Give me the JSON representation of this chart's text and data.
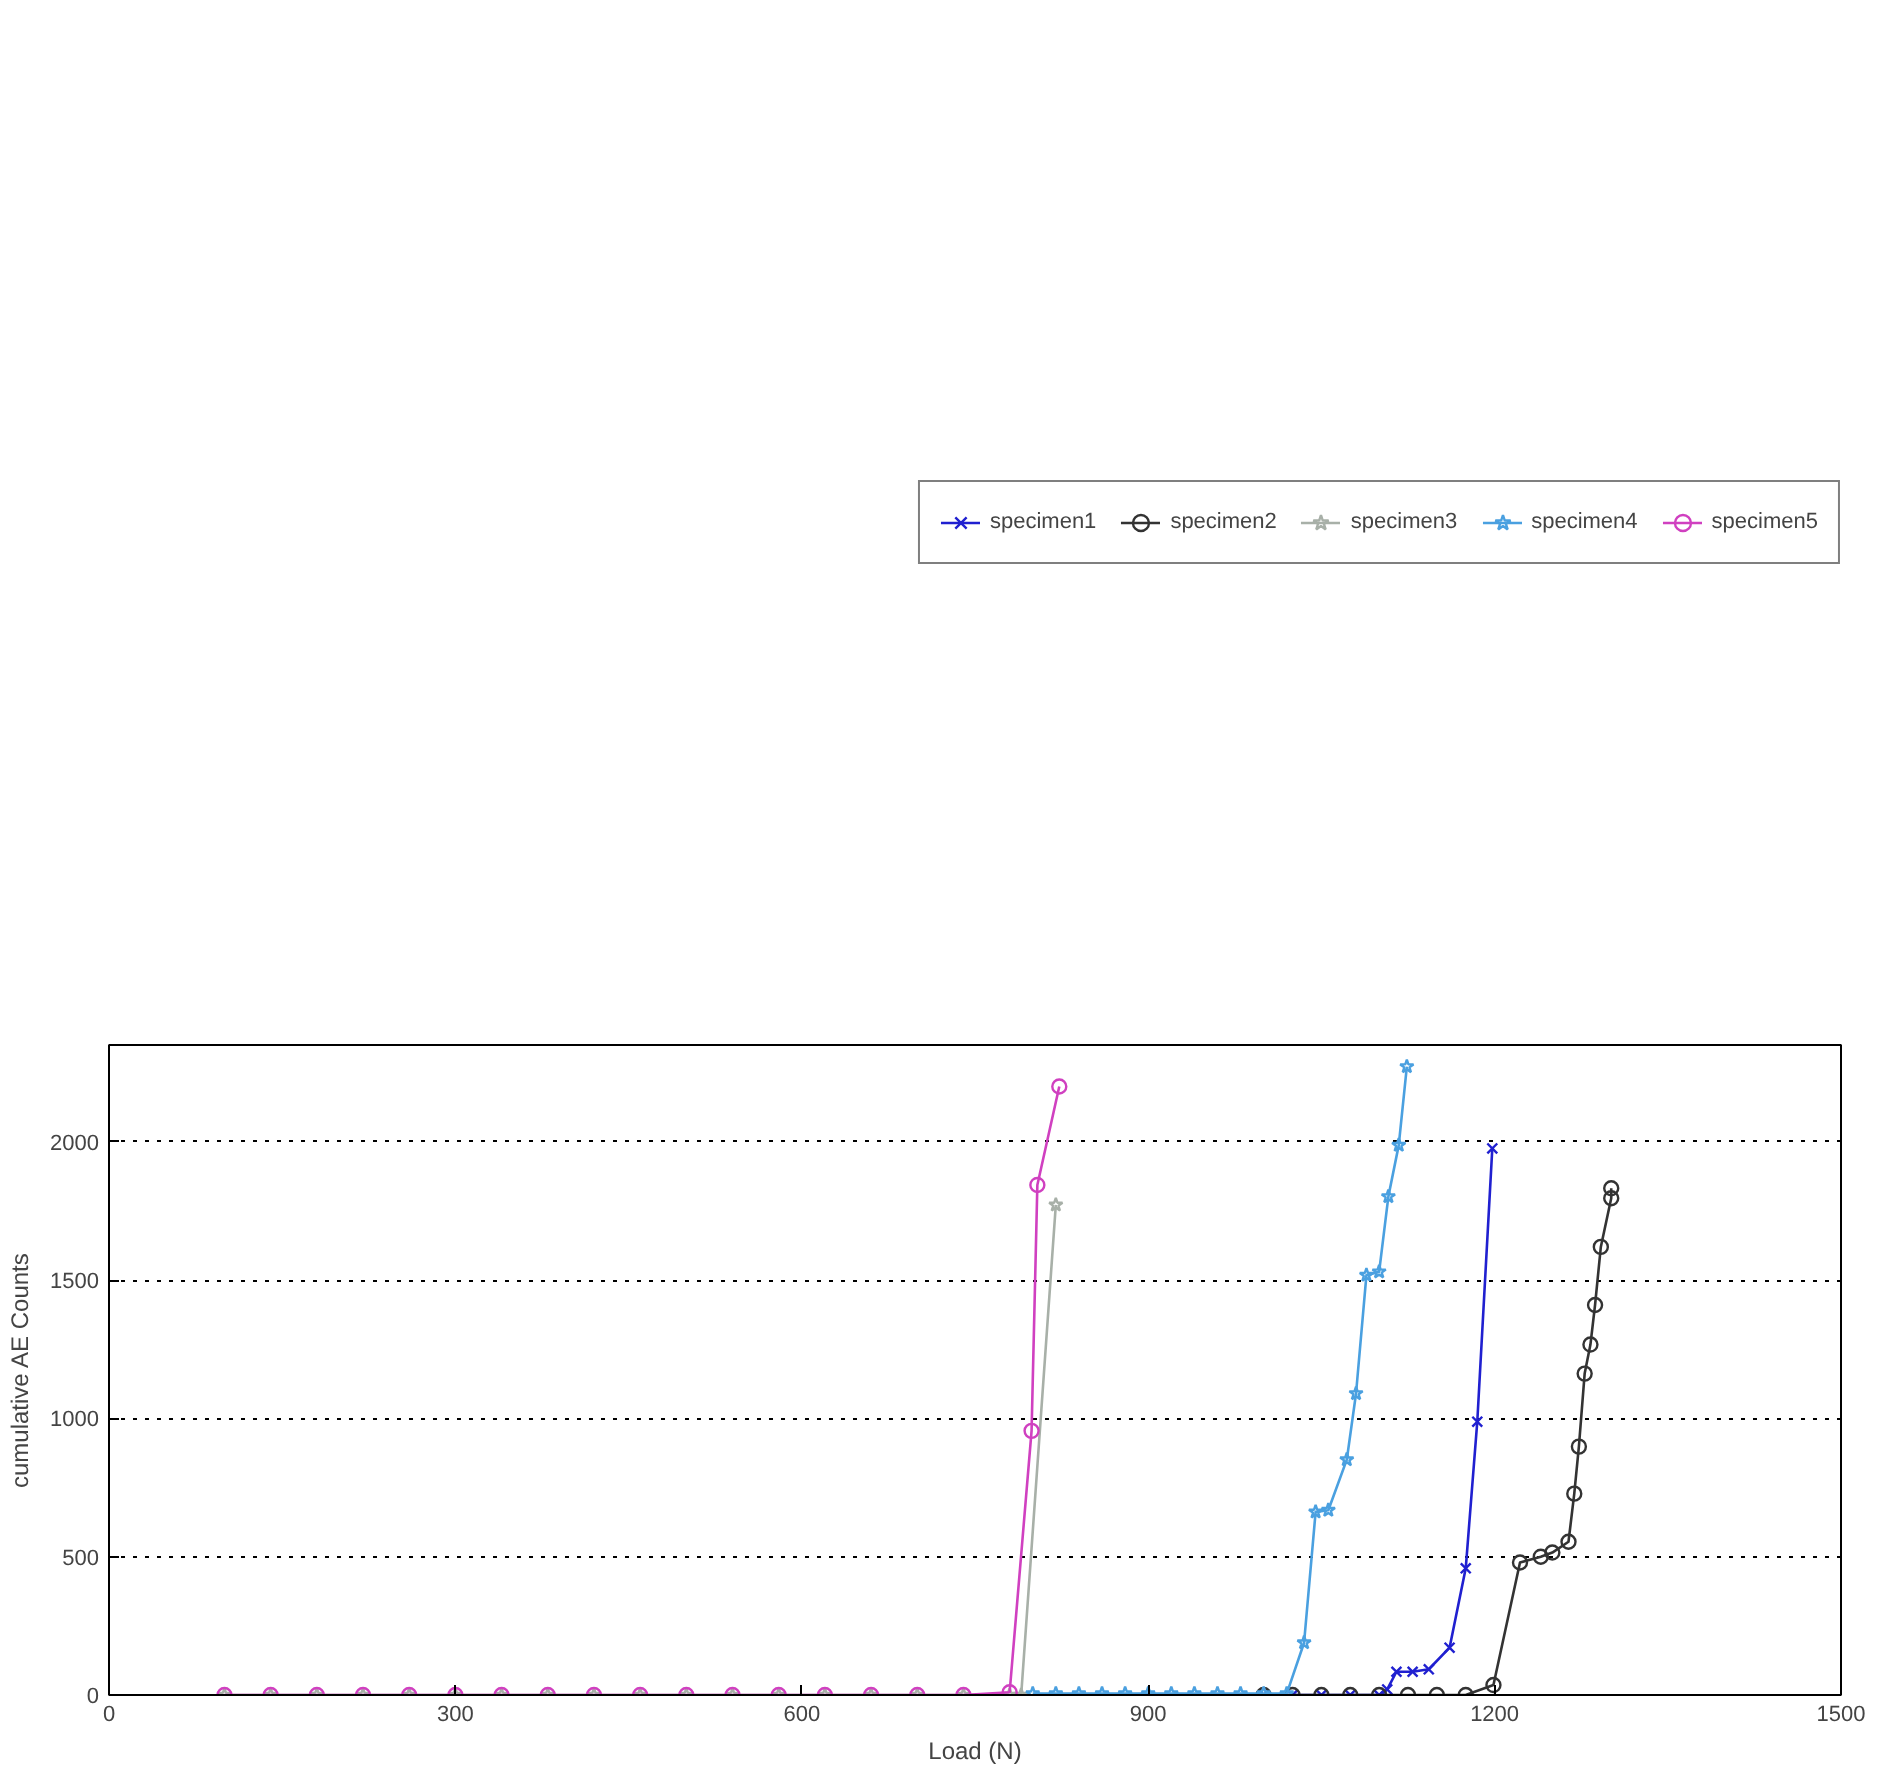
{
  "chart_data": {
    "type": "line",
    "xlabel": "Load (N)",
    "ylabel": "cumulative AE Counts",
    "xlim": [
      0,
      1500
    ],
    "ylim": [
      0,
      2350
    ],
    "xticks": [
      0,
      300,
      600,
      900,
      1200,
      1500
    ],
    "yticks": [
      0,
      500,
      1000,
      1500,
      2000
    ],
    "grid": "y",
    "legend": "top",
    "line_style": "solid",
    "series": [
      {
        "name": "specimen1",
        "color": "#2020d0",
        "marker": "cross",
        "x": [
          1000,
          1025,
          1050,
          1075,
          1100,
          1107,
          1115,
          1129,
          1143,
          1161,
          1175,
          1185,
          1198
        ],
        "values": [
          0,
          0,
          0,
          0,
          0,
          20,
          84,
          84,
          93,
          171,
          458,
          988,
          1976
        ]
      },
      {
        "name": "specimen2",
        "color": "#333333",
        "marker": "circle",
        "x": [
          1000,
          1025,
          1050,
          1075,
          1100,
          1125,
          1150,
          1175,
          1199,
          1222,
          1240,
          1250,
          1264,
          1269,
          1273,
          1278,
          1283,
          1287,
          1292,
          1301,
          1301
        ],
        "values": [
          0,
          0,
          0,
          0,
          0,
          0,
          0,
          0,
          36,
          479,
          500,
          515,
          554,
          728,
          898,
          1162,
          1267,
          1410,
          1620,
          1796,
          1832
        ]
      },
      {
        "name": "specimen3",
        "color": "#a8b0a8",
        "marker": "star",
        "x": [
          100,
          140,
          180,
          220,
          260,
          300,
          340,
          380,
          420,
          460,
          500,
          540,
          580,
          620,
          660,
          700,
          740,
          780,
          790,
          820
        ],
        "values": [
          0,
          0,
          0,
          0,
          0,
          0,
          0,
          0,
          0,
          0,
          0,
          0,
          0,
          0,
          0,
          0,
          0,
          0,
          0,
          1772
        ]
      },
      {
        "name": "specimen4",
        "color": "#4aa0e0",
        "marker": "star",
        "x": [
          800,
          820,
          840,
          860,
          880,
          900,
          920,
          940,
          960,
          980,
          1000,
          1020,
          1035,
          1045,
          1056,
          1072,
          1080,
          1089,
          1100,
          1108,
          1117,
          1124
        ],
        "values": [
          5,
          5,
          5,
          5,
          5,
          5,
          5,
          5,
          5,
          5,
          5,
          5,
          189,
          662,
          668,
          851,
          1090,
          1518,
          1530,
          1802,
          1988,
          2272
        ]
      },
      {
        "name": "specimen5",
        "color": "#d040c0",
        "marker": "circle",
        "x": [
          100,
          140,
          180,
          220,
          260,
          300,
          340,
          380,
          420,
          460,
          500,
          540,
          580,
          620,
          660,
          700,
          740,
          780,
          799,
          804,
          823
        ],
        "values": [
          0,
          0,
          0,
          0,
          0,
          0,
          0,
          0,
          0,
          0,
          0,
          0,
          0,
          0,
          0,
          0,
          0,
          10,
          955,
          1844,
          2200
        ]
      }
    ]
  }
}
